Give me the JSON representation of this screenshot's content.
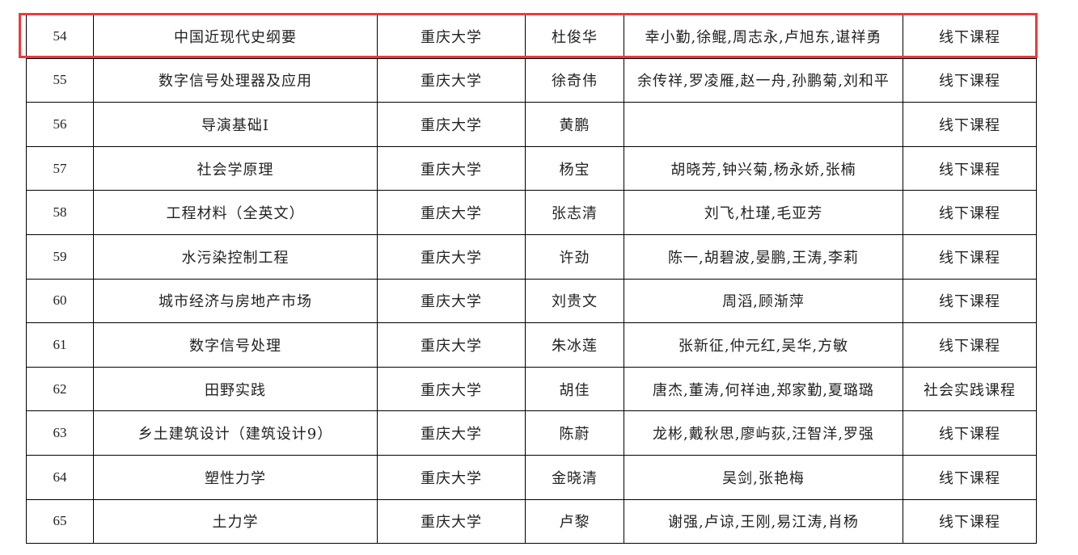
{
  "highlight_color": "#ee3a3a",
  "border_color": "#000000",
  "rows": [
    {
      "no": "54",
      "course": "中国近现代史纲要",
      "school": "重庆大学",
      "leader": "杜俊华",
      "team": "幸小勤,徐鲲,周志永,卢旭东,谌祥勇",
      "type": "线下课程",
      "highlighted": true
    },
    {
      "no": "55",
      "course": "数字信号处理器及应用",
      "school": "重庆大学",
      "leader": "徐奇伟",
      "team": "余传祥,罗凌雁,赵一舟,孙鹏菊,刘和平",
      "type": "线下课程"
    },
    {
      "no": "56",
      "course": "导演基础Ⅰ",
      "school": "重庆大学",
      "leader": "黄鹏",
      "team": "",
      "type": "线下课程"
    },
    {
      "no": "57",
      "course": "社会学原理",
      "school": "重庆大学",
      "leader": "杨宝",
      "team": "胡晓芳,钟兴菊,杨永娇,张楠",
      "type": "线下课程"
    },
    {
      "no": "58",
      "course": "工程材料（全英文）",
      "school": "重庆大学",
      "leader": "张志清",
      "team": "刘飞,杜瑾,毛亚芳",
      "type": "线下课程"
    },
    {
      "no": "59",
      "course": "水污染控制工程",
      "school": "重庆大学",
      "leader": "许劲",
      "team": "陈一,胡碧波,晏鹏,王涛,李莉",
      "type": "线下课程"
    },
    {
      "no": "60",
      "course": "城市经济与房地产市场",
      "school": "重庆大学",
      "leader": "刘贵文",
      "team": "周滔,顾渐萍",
      "type": "线下课程"
    },
    {
      "no": "61",
      "course": "数字信号处理",
      "school": "重庆大学",
      "leader": "朱冰莲",
      "team": "张新征,仲元红,吴华,方敏",
      "type": "线下课程"
    },
    {
      "no": "62",
      "course": "田野实践",
      "school": "重庆大学",
      "leader": "胡佳",
      "team": "唐杰,董涛,何祥迪,郑家勤,夏璐璐",
      "type": "社会实践课程"
    },
    {
      "no": "63",
      "course": "乡土建筑设计（建筑设计9）",
      "school": "重庆大学",
      "leader": "陈蔚",
      "team": "龙彬,戴秋思,廖屿荻,汪智洋,罗强",
      "type": "线下课程"
    },
    {
      "no": "64",
      "course": "塑性力学",
      "school": "重庆大学",
      "leader": "金晓清",
      "team": "吴剑,张艳梅",
      "type": "线下课程"
    },
    {
      "no": "65",
      "course": "土力学",
      "school": "重庆大学",
      "leader": "卢黎",
      "team": "谢强,卢谅,王刚,易江涛,肖杨",
      "type": "线下课程"
    }
  ]
}
